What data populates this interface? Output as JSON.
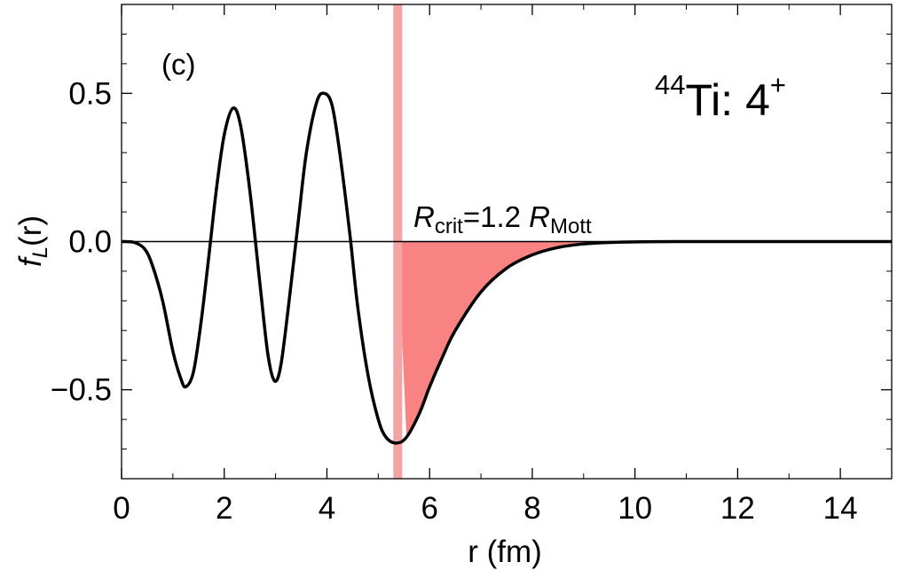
{
  "chart_data": {
    "type": "line",
    "panel_label": "(c)",
    "xlabel": "r (fm)",
    "ylabel": {
      "f": "f",
      "sub": "L",
      "rest": "(r)"
    },
    "xlim": [
      0,
      15
    ],
    "ylim": [
      -0.8,
      0.8
    ],
    "xticks": [
      0,
      2,
      4,
      6,
      8,
      10,
      12,
      14
    ],
    "yticks": [
      -0.5,
      0.0,
      0.5
    ],
    "ytick_labels": [
      "−0.5",
      "0.0",
      "0.5"
    ],
    "grid": false,
    "nucleus": {
      "mass": "44",
      "symbol": "Ti: 4",
      "spin": "+"
    },
    "critical_radius": {
      "x": 5.38,
      "label": {
        "R1": "R",
        "sub1": "crit",
        "mid": "=1.2 ",
        "R2": "R",
        "sub2": "Mott"
      },
      "band_color": "#f4a4a4"
    },
    "shaded_region_color": "#f98282",
    "line_color": "#000000",
    "series": [
      {
        "values": [
          [
            0.0,
            0.0
          ],
          [
            0.25,
            -0.003
          ],
          [
            0.45,
            -0.025
          ],
          [
            0.6,
            -0.08
          ],
          [
            0.8,
            -0.2
          ],
          [
            1.0,
            -0.37
          ],
          [
            1.15,
            -0.46
          ],
          [
            1.25,
            -0.49
          ],
          [
            1.4,
            -0.44
          ],
          [
            1.55,
            -0.27
          ],
          [
            1.7,
            -0.05
          ],
          [
            1.85,
            0.18
          ],
          [
            2.0,
            0.36
          ],
          [
            2.17,
            0.45
          ],
          [
            2.32,
            0.39
          ],
          [
            2.5,
            0.17
          ],
          [
            2.7,
            -0.15
          ],
          [
            2.85,
            -0.38
          ],
          [
            2.98,
            -0.47
          ],
          [
            3.1,
            -0.42
          ],
          [
            3.25,
            -0.22
          ],
          [
            3.45,
            0.08
          ],
          [
            3.6,
            0.3
          ],
          [
            3.8,
            0.47
          ],
          [
            3.95,
            0.5
          ],
          [
            4.1,
            0.46
          ],
          [
            4.25,
            0.3
          ],
          [
            4.45,
            0.02
          ],
          [
            4.6,
            -0.22
          ],
          [
            4.8,
            -0.45
          ],
          [
            5.0,
            -0.6
          ],
          [
            5.15,
            -0.66
          ],
          [
            5.35,
            -0.68
          ],
          [
            5.55,
            -0.66
          ],
          [
            5.8,
            -0.58
          ],
          [
            6.0,
            -0.49
          ],
          [
            6.25,
            -0.39
          ],
          [
            6.5,
            -0.3
          ],
          [
            7.0,
            -0.17
          ],
          [
            7.5,
            -0.09
          ],
          [
            8.0,
            -0.045
          ],
          [
            8.5,
            -0.02
          ],
          [
            9.0,
            -0.008
          ],
          [
            9.5,
            -0.003
          ],
          [
            10.0,
            -0.001
          ],
          [
            11.0,
            0.0
          ],
          [
            15.0,
            0.0
          ]
        ]
      }
    ]
  }
}
